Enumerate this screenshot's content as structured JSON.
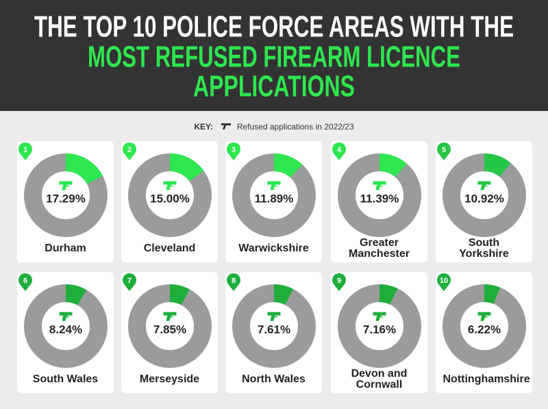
{
  "header": {
    "title_lines": [
      "THE TOP 10 POLICE FORCE AREAS WITH THE",
      "MOST REFUSED FIREARM LICENCE",
      "APPLICATIONS"
    ]
  },
  "key": {
    "label": "KEY:",
    "text": "Refused applications in 2022/23"
  },
  "chart_data": [
    {
      "type": "donut",
      "rank": 1,
      "title": "Durham",
      "values": [
        17.29
      ],
      "value_labels": [
        "17.29%"
      ],
      "color": "#2ee64f"
    },
    {
      "type": "donut",
      "rank": 2,
      "title": "Cleveland",
      "values": [
        15.0
      ],
      "value_labels": [
        "15.00%"
      ],
      "color": "#2ee64f"
    },
    {
      "type": "donut",
      "rank": 3,
      "title": "Warwickshire",
      "values": [
        11.89
      ],
      "value_labels": [
        "11.89%"
      ],
      "color": "#2ee64f"
    },
    {
      "type": "donut",
      "rank": 4,
      "title": "Greater Manchester",
      "values": [
        11.39
      ],
      "value_labels": [
        "11.39%"
      ],
      "color": "#2ee64f"
    },
    {
      "type": "donut",
      "rank": 5,
      "title": "South Yorkshire",
      "values": [
        10.92
      ],
      "value_labels": [
        "10.92%"
      ],
      "color": "#25c546"
    },
    {
      "type": "donut",
      "rank": 6,
      "title": "South Wales",
      "values": [
        8.24
      ],
      "value_labels": [
        "8.24%"
      ],
      "color": "#1fae3c"
    },
    {
      "type": "donut",
      "rank": 7,
      "title": "Merseyside",
      "values": [
        7.85
      ],
      "value_labels": [
        "7.85%"
      ],
      "color": "#1fae3c"
    },
    {
      "type": "donut",
      "rank": 8,
      "title": "North Wales",
      "values": [
        7.61
      ],
      "value_labels": [
        "7.61%"
      ],
      "color": "#1fae3c"
    },
    {
      "type": "donut",
      "rank": 9,
      "title": "Devon and Cornwall",
      "values": [
        7.16
      ],
      "value_labels": [
        "7.16%"
      ],
      "color": "#1fae3c"
    },
    {
      "type": "donut",
      "rank": 10,
      "title": "Nottinghamshire",
      "values": [
        6.22
      ],
      "value_labels": [
        "6.22%"
      ],
      "color": "#1fae3c"
    }
  ]
}
